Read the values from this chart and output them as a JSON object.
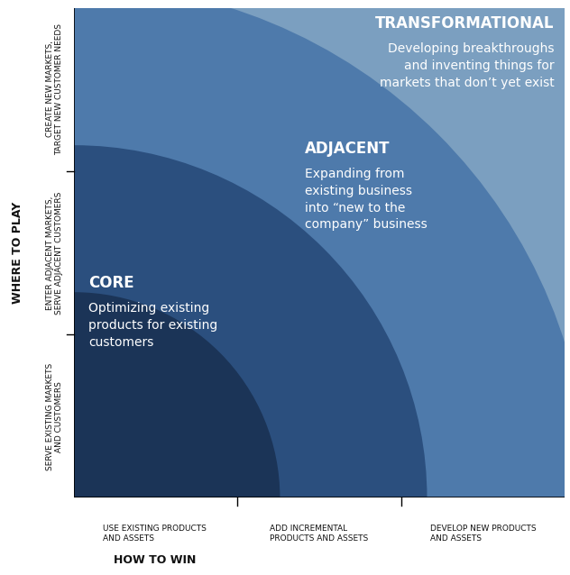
{
  "bg_color": "#ffffff",
  "plot_area_bg": "#7b9fc0",
  "circle_large_color": "#4e7aab",
  "circle_medium_color": "#2b4f7e",
  "circle_small_color": "#1b3457",
  "transformational_title": "TRANSFORMATIONAL",
  "transformational_body": "Developing breakthroughs\nand inventing things for\nmarkets that don’t yet exist",
  "adjacent_title": "ADJACENT",
  "adjacent_body": "Expanding from\nexisting business\ninto “new to the\ncompany” business",
  "core_title": "CORE",
  "core_body": "Optimizing existing\nproducts for existing\ncustomers",
  "y_label_top": "CREATE NEW MARKETS,\nTARGET NEW CUSTOMER NEEDS",
  "y_label_mid": "ENTER ADJACENT MARKETS,\nSERVE ADJACENT CUSTOMERS",
  "y_label_bot": "SERVE EXISTING MARKETS\nAND CUSTOMERS",
  "y_axis_label": "WHERE TO PLAY",
  "x_label_left": "USE EXISTING PRODUCTS\nAND ASSETS",
  "x_label_mid": "ADD INCREMENTAL\nPRODUCTS AND ASSETS",
  "x_label_right": "DEVELOP NEW PRODUCTS\nAND ASSETS",
  "x_axis_label": "HOW TO WIN",
  "text_color_white": "#ffffff",
  "text_color_black": "#111111",
  "font_family": "DejaVu Sans",
  "title_fontsize": 12,
  "body_fontsize": 10,
  "label_fontsize": 6.5,
  "axis_label_fontsize": 9
}
